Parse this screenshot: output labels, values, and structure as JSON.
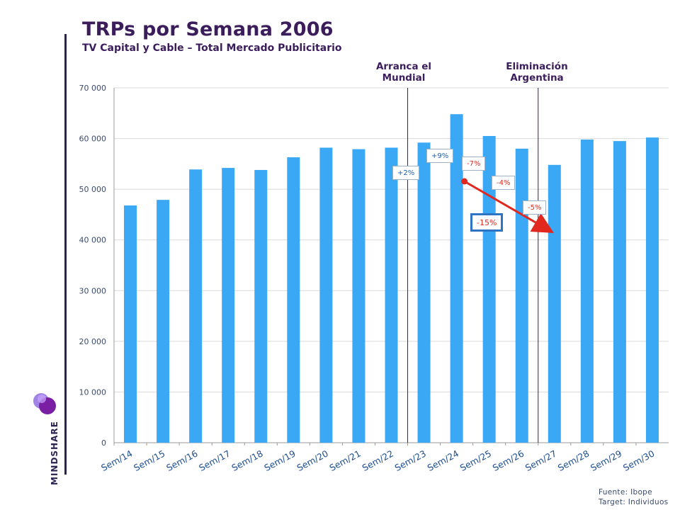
{
  "header": {
    "title": "TRPs por Semana 2006",
    "subtitle": "TV Capital y Cable – Total Mercado Publicitario"
  },
  "brand": {
    "name": "MINDSHARE"
  },
  "footer": {
    "source": "Fuente: Ibope",
    "target": "Target: Individuos"
  },
  "colors": {
    "bar": "#3aa8f5",
    "accent_red": "#e0281e",
    "accent_blue": "#2e74c4",
    "title": "#3b1d5c"
  },
  "events": [
    {
      "line1": "Arranca el",
      "line2": "Mundial",
      "after_category": "Sem/22"
    },
    {
      "line1": "Eliminación",
      "line2": "Argentina",
      "after_category": "Sem/26"
    }
  ],
  "annotations": {
    "changes": [
      {
        "label": "+2%",
        "category": "Sem/23",
        "sign": "pos"
      },
      {
        "label": "+9%",
        "category": "Sem/24",
        "sign": "pos"
      },
      {
        "label": "-7%",
        "category": "Sem/25",
        "sign": "neg"
      },
      {
        "label": "-4%",
        "category": "Sem/26",
        "sign": "neg"
      },
      {
        "label": "-5%",
        "category": "Sem/27",
        "sign": "neg"
      }
    ],
    "overall": {
      "label": "-15%",
      "from": "Sem/24",
      "to": "Sem/27"
    }
  },
  "chart_data": {
    "type": "bar",
    "title": "TRPs por Semana 2006",
    "categories": [
      "Sem/14",
      "Sem/15",
      "Sem/16",
      "Sem/17",
      "Sem/18",
      "Sem/19",
      "Sem/20",
      "Sem/21",
      "Sem/22",
      "Sem/23",
      "Sem/24",
      "Sem/25",
      "Sem/26",
      "Sem/27",
      "Sem/28",
      "Sem/29",
      "Sem/30"
    ],
    "values": [
      46800,
      47900,
      53900,
      54200,
      53800,
      56300,
      58200,
      57900,
      58200,
      59200,
      64800,
      60500,
      58000,
      54800,
      59800,
      59500,
      60200
    ],
    "ylim": [
      0,
      70000
    ],
    "yticks": [
      0,
      10000,
      20000,
      30000,
      40000,
      50000,
      60000,
      70000
    ],
    "ytick_labels": [
      "0",
      "10 000",
      "20 000",
      "30 000",
      "40 000",
      "50 000",
      "60 000",
      "70 000"
    ],
    "grid": true,
    "xlabel": "",
    "ylabel": ""
  }
}
